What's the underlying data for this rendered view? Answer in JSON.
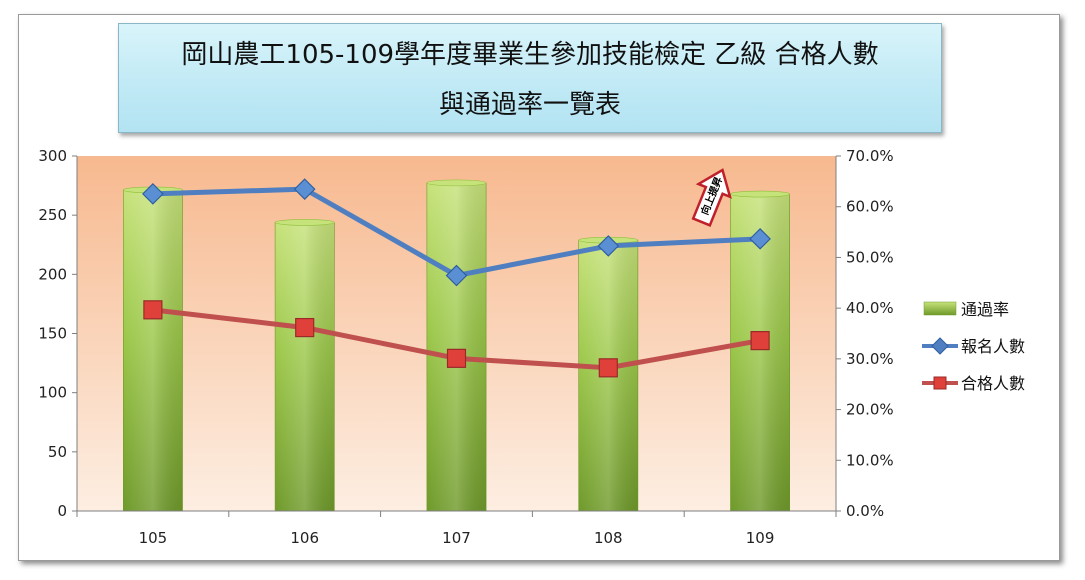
{
  "title": {
    "line1": "岡山農工105-109學年度畢業生參加技能檢定  乙級  合格人數",
    "line2": "與通過率一覽表"
  },
  "colors": {
    "bar": "#8fbf3a",
    "bar_light": "#c6e27a",
    "applicants_line": "#4f7fc0",
    "passed_line": "#c0504d",
    "plot_bg_top": "#f7b98f",
    "plot_bg_bottom": "#fdeee2"
  },
  "chart_data": {
    "type": "bar",
    "categories": [
      "105",
      "106",
      "107",
      "108",
      "109"
    ],
    "series": [
      {
        "name": "通過率",
        "kind": "bar",
        "axis": "right",
        "values": [
          63.3,
          56.9,
          64.7,
          53.4,
          62.5
        ]
      },
      {
        "name": "報名人數",
        "kind": "line",
        "marker": "diamond",
        "axis": "left",
        "values": [
          268,
          272,
          199,
          224,
          230
        ]
      },
      {
        "name": "合格人數",
        "kind": "line",
        "marker": "square",
        "axis": "left",
        "values": [
          170,
          155,
          129,
          121,
          144
        ]
      }
    ],
    "left_axis": {
      "ylim": [
        0,
        300
      ],
      "ticks": [
        "0",
        "50",
        "100",
        "150",
        "200",
        "250",
        "300"
      ]
    },
    "right_axis": {
      "ylim": [
        0,
        70
      ],
      "ticks": [
        "0.0%",
        "10.0%",
        "20.0%",
        "30.0%",
        "40.0%",
        "50.0%",
        "60.0%",
        "70.0%"
      ]
    },
    "legend_position": "right",
    "grid": false,
    "annotation": {
      "text": "向上提昇",
      "category": "109"
    }
  }
}
